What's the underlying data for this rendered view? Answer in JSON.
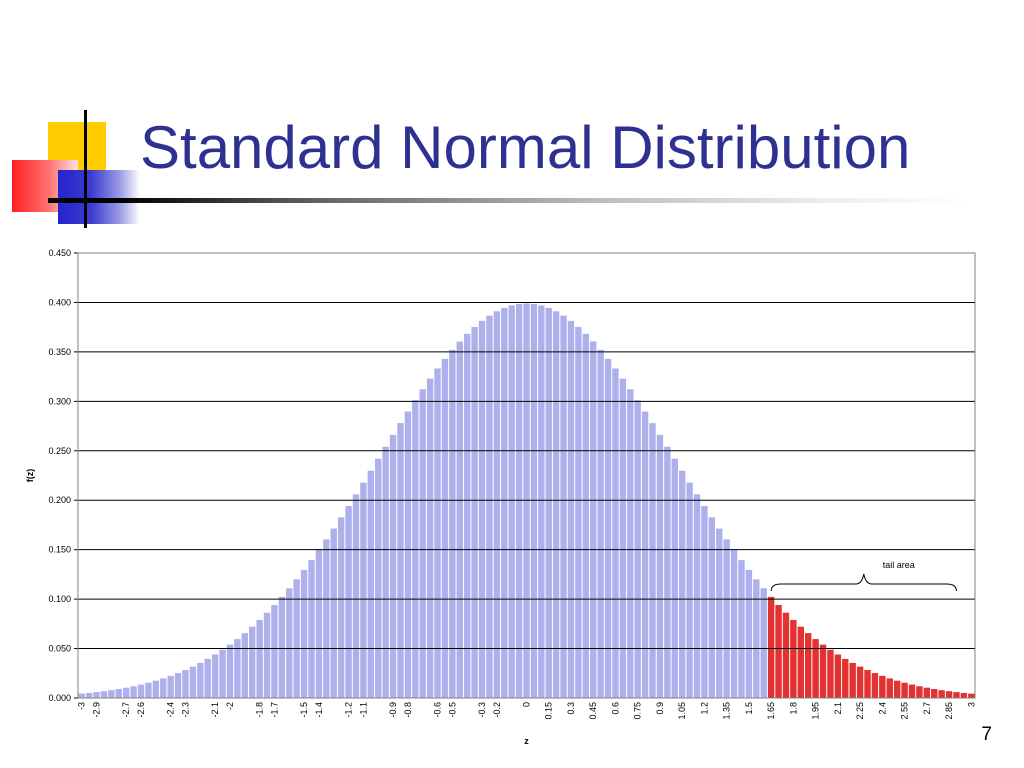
{
  "slide": {
    "title": "Standard Normal Distribution",
    "number": "7"
  },
  "chart_data": {
    "type": "bar",
    "function": "standard normal pdf f(z) = exp(-z^2/2)/sqrt(2*pi)",
    "xlabel": "z",
    "ylabel": "f(z)",
    "x_start": -3,
    "x_end": 3,
    "x_step": 0.05,
    "ylim": [
      0,
      0.45
    ],
    "y_tick_labels": [
      "0.000",
      "0.050",
      "0.100",
      "0.150",
      "0.200",
      "0.250",
      "0.300",
      "0.350",
      "0.400",
      "0.450"
    ],
    "x_tick_labels": [
      "-3",
      "-2.9",
      "-2.7",
      "-2.6",
      "-2.4",
      "-2.3",
      "-2.1",
      "-2",
      "-1.8",
      "-1.7",
      "-1.5",
      "-1.4",
      "-1.2",
      "-1.1",
      "-0.9",
      "-0.8",
      "-0.6",
      "-0.5",
      "-0.3",
      "-0.2",
      "0",
      "0.15",
      "0.3",
      "0.45",
      "0.6",
      "0.75",
      "0.9",
      "1.05",
      "1.2",
      "1.35",
      "1.5",
      "1.65",
      "1.8",
      "1.95",
      "2.1",
      "2.25",
      "2.4",
      "2.55",
      "2.7",
      "2.85",
      "3"
    ],
    "tail_threshold": 1.65,
    "grid": "horizontal",
    "annotation": "tail area",
    "colors": {
      "body": "#aeb0ec",
      "tail": "#e23232",
      "gridline": "#000000"
    }
  }
}
